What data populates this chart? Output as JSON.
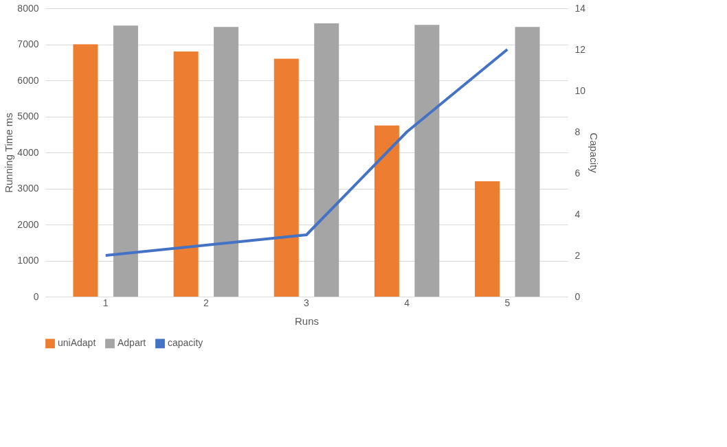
{
  "chart_data": {
    "type": "bar",
    "xlabel": "Runs",
    "ylabel": "Running Time ms",
    "y2label": "Capacity",
    "categories": [
      "1",
      "2",
      "3",
      "4",
      "5"
    ],
    "series": [
      {
        "name": "uniAdapt",
        "color": "#ed7d31",
        "values": [
          7000,
          6800,
          6600,
          4750,
          3200
        ]
      },
      {
        "name": "Adpart",
        "color": "#a5a5a5",
        "values": [
          7520,
          7480,
          7580,
          7540,
          7480
        ]
      },
      {
        "name": "capacity",
        "color": "#4472c4",
        "type": "line",
        "axis": "y2",
        "values": [
          2,
          2.5,
          3,
          8,
          12
        ]
      }
    ],
    "ylim": [
      0,
      8000
    ],
    "yticks": [
      0,
      1000,
      2000,
      3000,
      4000,
      5000,
      6000,
      7000,
      8000
    ],
    "y2lim": [
      0,
      14
    ],
    "y2ticks": [
      0,
      2,
      4,
      6,
      8,
      10,
      12,
      14
    ],
    "grid": "y",
    "legend": "bottom"
  }
}
